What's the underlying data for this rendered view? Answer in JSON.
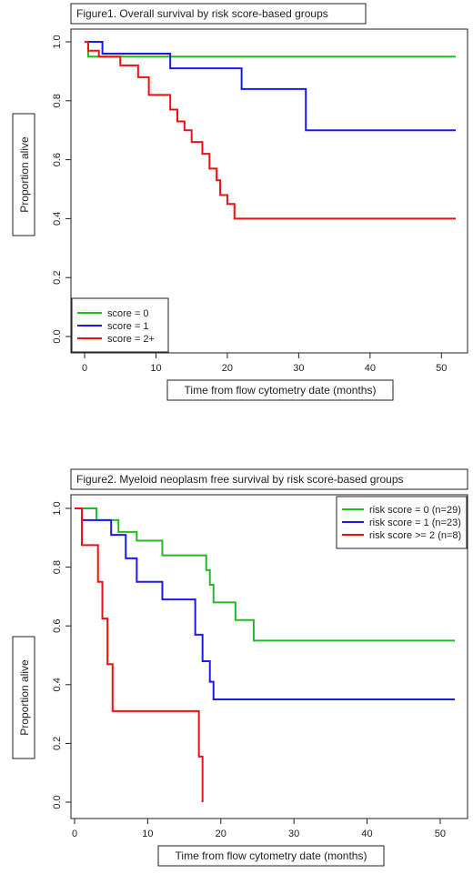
{
  "chart_data": [
    {
      "type": "line",
      "title": "Figure1. Overall survival by risk score-based groups",
      "xlabel": "Time from flow cytometry date (months)",
      "ylabel": "Proportion alive",
      "xlim": [
        0,
        52
      ],
      "ylim": [
        0,
        1
      ],
      "xticks": [
        "0",
        "10",
        "20",
        "30",
        "40",
        "50"
      ],
      "yticks": [
        "0.0",
        "0.2",
        "0.4",
        "0.6",
        "0.8",
        "1.0"
      ],
      "legend_position": "bottom-left",
      "grid": false,
      "series": [
        {
          "name": "score = 0",
          "color": "#22bb22",
          "x": [
            0,
            0.5,
            52
          ],
          "y": [
            1.0,
            0.95,
            0.95
          ]
        },
        {
          "name": "score = 1",
          "color": "#1a1aee",
          "x": [
            0,
            2.5,
            12,
            22,
            31,
            52
          ],
          "y": [
            1.0,
            0.96,
            0.91,
            0.84,
            0.7,
            0.7
          ]
        },
        {
          "name": "score = 2+",
          "color": "#ee1111",
          "x": [
            0,
            0.5,
            2,
            5,
            7.5,
            9,
            12,
            13,
            14,
            15,
            16.5,
            17.5,
            18.5,
            19,
            20,
            21,
            52
          ],
          "y": [
            1.0,
            0.97,
            0.95,
            0.92,
            0.88,
            0.82,
            0.77,
            0.73,
            0.7,
            0.66,
            0.62,
            0.57,
            0.53,
            0.48,
            0.45,
            0.4,
            0.4
          ]
        }
      ]
    },
    {
      "type": "line",
      "title": "Figure2. Myeloid neoplasm free survival by risk score-based groups",
      "xlabel": "Time from flow cytometry date (months)",
      "ylabel": "Proportion alive",
      "xlim": [
        0,
        52
      ],
      "ylim": [
        0,
        1
      ],
      "xticks": [
        "0",
        "10",
        "20",
        "30",
        "40",
        "50"
      ],
      "yticks": [
        "0.0",
        "0.2",
        "0.4",
        "0.6",
        "0.8",
        "1.0"
      ],
      "legend_position": "top-right",
      "grid": false,
      "series": [
        {
          "name": "risk score = 0 (n=29)",
          "color": "#22bb22",
          "x": [
            0,
            3,
            6,
            8.5,
            12,
            18,
            18.5,
            19,
            22,
            24.5,
            52
          ],
          "y": [
            1.0,
            0.96,
            0.92,
            0.89,
            0.84,
            0.79,
            0.74,
            0.68,
            0.62,
            0.55,
            0.55
          ]
        },
        {
          "name": "risk score = 1 (n=23)",
          "color": "#1a1aee",
          "x": [
            0,
            1,
            5,
            7,
            8.5,
            12,
            16.5,
            17.5,
            18.5,
            19,
            52
          ],
          "y": [
            1.0,
            0.96,
            0.91,
            0.83,
            0.75,
            0.69,
            0.57,
            0.48,
            0.41,
            0.35,
            0.35
          ]
        },
        {
          "name": "risk score >= 2 (n=8)",
          "color": "#ee1111",
          "x": [
            0,
            1,
            3.2,
            3.8,
            4.5,
            5.2,
            17,
            17.5,
            17.5
          ],
          "y": [
            1.0,
            0.875,
            0.75,
            0.625,
            0.47,
            0.31,
            0.155,
            0.0,
            0.0
          ]
        }
      ]
    }
  ]
}
